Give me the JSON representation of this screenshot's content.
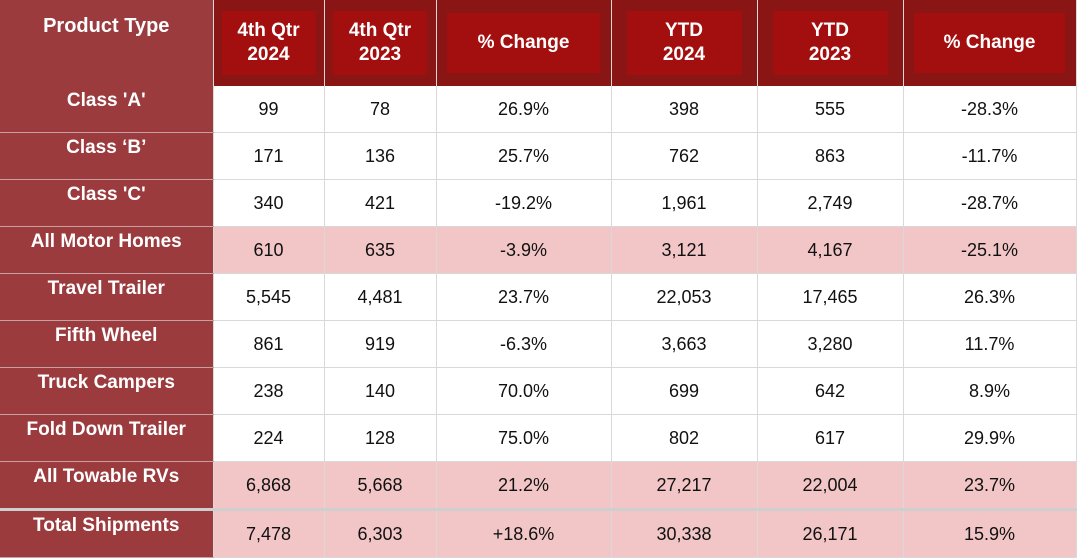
{
  "headers": [
    {
      "line1": "Product Type",
      "line2": ""
    },
    {
      "line1": "4th Qtr",
      "line2": "2024"
    },
    {
      "line1": "4th Qtr",
      "line2": "2023"
    },
    {
      "line1": "% Change",
      "line2": ""
    },
    {
      "line1": "YTD",
      "line2": "2024"
    },
    {
      "line1": "YTD",
      "line2": "2023"
    },
    {
      "line1": "% Change",
      "line2": ""
    }
  ],
  "rows": [
    {
      "label": "Class 'A'",
      "q4_2024": "99",
      "q4_2023": "78",
      "q_change": "26.9%",
      "ytd_2024": "398",
      "ytd_2023": "555",
      "ytd_change": "-28.3%",
      "kind": "normal"
    },
    {
      "label": "Class ‘B’",
      "q4_2024": "171",
      "q4_2023": "136",
      "q_change": "25.7%",
      "ytd_2024": "762",
      "ytd_2023": "863",
      "ytd_change": "-11.7%",
      "kind": "normal"
    },
    {
      "label": "Class 'C'",
      "q4_2024": "340",
      "q4_2023": "421",
      "q_change": "-19.2%",
      "ytd_2024": "1,961",
      "ytd_2023": "2,749",
      "ytd_change": "-28.7%",
      "kind": "normal"
    },
    {
      "label": "All Motor Homes",
      "q4_2024": "610",
      "q4_2023": "635",
      "q_change": "-3.9%",
      "ytd_2024": "3,121",
      "ytd_2023": "4,167",
      "ytd_change": "-25.1%",
      "kind": "sub"
    },
    {
      "label": "Travel Trailer",
      "q4_2024": "5,545",
      "q4_2023": "4,481",
      "q_change": "23.7%",
      "ytd_2024": "22,053",
      "ytd_2023": "17,465",
      "ytd_change": "26.3%",
      "kind": "normal"
    },
    {
      "label": "Fifth Wheel",
      "q4_2024": "861",
      "q4_2023": "919",
      "q_change": "-6.3%",
      "ytd_2024": "3,663",
      "ytd_2023": "3,280",
      "ytd_change": "11.7%",
      "kind": "normal"
    },
    {
      "label": "Truck Campers",
      "q4_2024": "238",
      "q4_2023": "140",
      "q_change": "70.0%",
      "ytd_2024": "699",
      "ytd_2023": "642",
      "ytd_change": "8.9%",
      "kind": "normal"
    },
    {
      "label": "Fold Down Trailer",
      "q4_2024": "224",
      "q4_2023": "128",
      "q_change": "75.0%",
      "ytd_2024": "802",
      "ytd_2023": "617",
      "ytd_change": "29.9%",
      "kind": "normal"
    },
    {
      "label": "All Towable RVs",
      "q4_2024": "6,868",
      "q4_2023": "5,668",
      "q_change": "21.2%",
      "ytd_2024": "27,217",
      "ytd_2023": "22,004",
      "ytd_change": "23.7%",
      "kind": "sub"
    },
    {
      "label": "Total Shipments",
      "q4_2024": "7,478",
      "q4_2023": "6,303",
      "q_change": "+18.6%",
      "ytd_2024": "30,338",
      "ytd_2023": "26,171",
      "ytd_change": "15.9%",
      "kind": "total"
    }
  ],
  "colors": {
    "header_bg": "#8a1515",
    "header_cell": "#a30e0e",
    "label_bg": "#9b3b3e",
    "subtotal_bg": "#f2c6c7",
    "grid": "#d9d9d9"
  }
}
